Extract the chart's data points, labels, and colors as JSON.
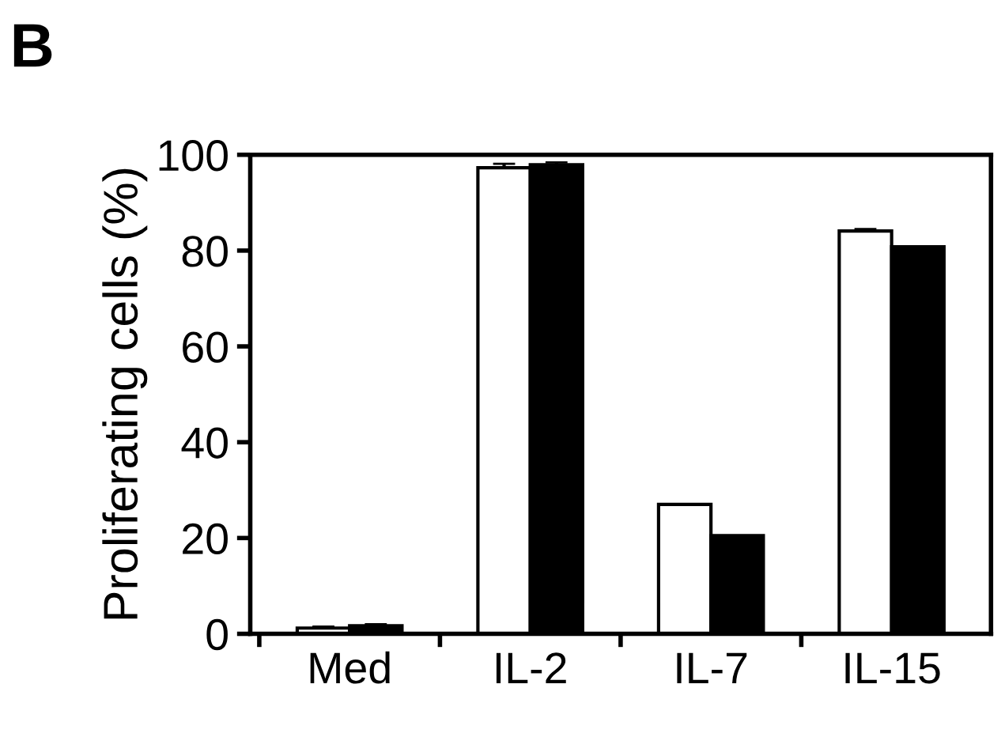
{
  "chart_data": {
    "type": "bar",
    "ylabel": "Proliferating cells (%)",
    "annotations": [
      "B"
    ],
    "categories": [
      "Med",
      "IL-2",
      "IL-7",
      "IL-15"
    ],
    "series": [
      {
        "color": "#ffffff",
        "values": [
          1.2,
          97.3,
          27,
          84.1
        ],
        "errors": [
          0.3,
          0.8,
          null,
          0.4
        ]
      },
      {
        "color": "#000000",
        "values": [
          1.7,
          97.9,
          20.5,
          80.8
        ],
        "errors": [
          0.3,
          0.5,
          null,
          null
        ]
      }
    ],
    "ylim": [
      0,
      100
    ],
    "yticks": [
      0,
      20,
      40,
      60,
      80,
      100
    ],
    "grid": false,
    "legend": false
  }
}
